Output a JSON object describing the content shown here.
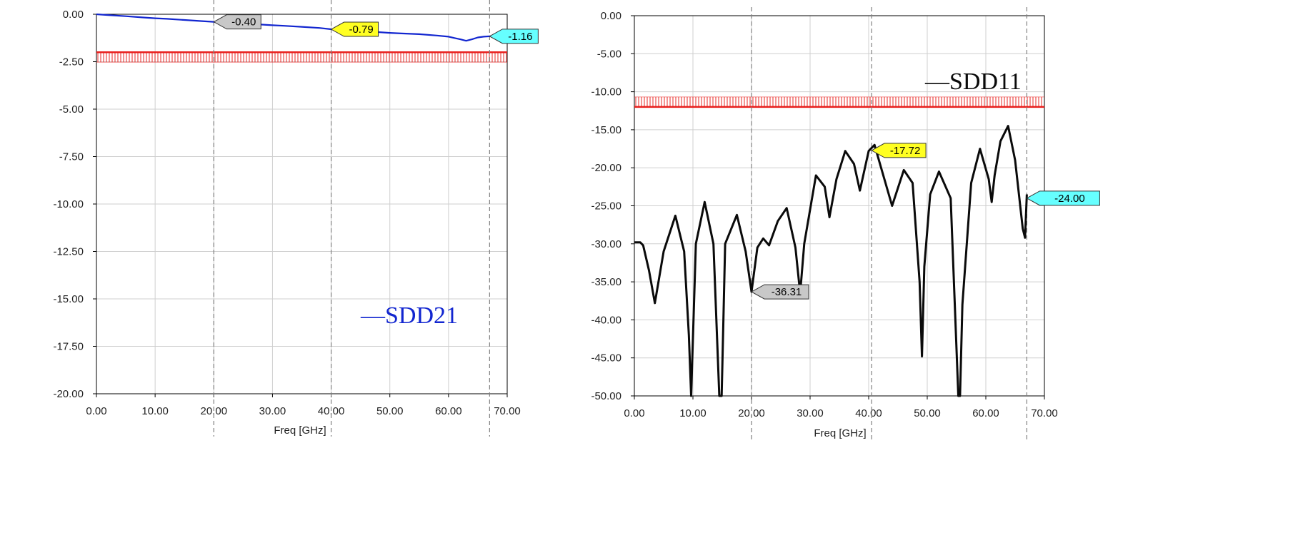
{
  "colors": {
    "grid": "#cfcfcf",
    "axis": "#000000",
    "limit": "#e8201e",
    "sdd21": "#1226d0",
    "sdd11": "#0a0a0a",
    "marker_gray": "#c8c8c8",
    "marker_yellow": "#ffff22",
    "marker_cyan": "#66ffff"
  },
  "chart_data": [
    {
      "type": "line",
      "title": "",
      "xlabel": "Freq [GHz]",
      "ylabel": "",
      "xlim": [
        0,
        70
      ],
      "ylim": [
        -20,
        0
      ],
      "grid": true,
      "x_ticks": [
        "0.00",
        "10.00",
        "20.00",
        "30.00",
        "40.00",
        "50.00",
        "60.00",
        "70.00"
      ],
      "y_ticks": [
        "0.00",
        "-2.50",
        "-5.00",
        "-7.50",
        "-10.00",
        "-12.50",
        "-15.00",
        "-17.50",
        "-20.00"
      ],
      "legend": "—SDD21",
      "limit_line": -2.0,
      "marker_lines_x": [
        20,
        40,
        67
      ],
      "markers": [
        {
          "x": 20,
          "y": -0.4,
          "label": "-0.40",
          "color": "gray"
        },
        {
          "x": 40,
          "y": -0.79,
          "label": "-0.79",
          "color": "yellow"
        },
        {
          "x": 67,
          "y": -1.16,
          "label": "-1.16",
          "color": "cyan"
        }
      ],
      "series": [
        {
          "x": [
            0,
            2,
            5,
            8,
            10,
            12,
            15,
            18,
            20,
            22,
            25,
            28,
            30,
            32,
            35,
            38,
            40,
            42,
            45,
            48,
            50,
            52,
            55,
            58,
            60,
            61,
            62,
            63,
            64,
            65,
            66,
            67,
            68,
            69,
            70
          ],
          "y": [
            0,
            -0.04,
            -0.1,
            -0.17,
            -0.21,
            -0.24,
            -0.3,
            -0.36,
            -0.4,
            -0.43,
            -0.48,
            -0.54,
            -0.58,
            -0.61,
            -0.66,
            -0.72,
            -0.79,
            -0.83,
            -0.88,
            -0.94,
            -0.98,
            -1.01,
            -1.05,
            -1.12,
            -1.18,
            -1.25,
            -1.32,
            -1.4,
            -1.32,
            -1.22,
            -1.18,
            -1.16,
            -1.14,
            -1.12,
            -1.1
          ]
        }
      ]
    },
    {
      "type": "line",
      "title": "",
      "xlabel": "Freq [GHz]",
      "ylabel": "",
      "xlim": [
        0,
        70
      ],
      "ylim": [
        -50,
        0
      ],
      "grid": true,
      "x_ticks": [
        "0.00",
        "10.00",
        "20.00",
        "30.00",
        "40.00",
        "50.00",
        "60.00",
        "70.00"
      ],
      "y_ticks": [
        "0.00",
        "-5.00",
        "-10.00",
        "-15.00",
        "-20.00",
        "-25.00",
        "-30.00",
        "-35.00",
        "-40.00",
        "-45.00",
        "-50.00"
      ],
      "legend": "—SDD11",
      "limit_line": -12.0,
      "marker_lines_x": [
        20,
        40.5,
        67
      ],
      "markers": [
        {
          "x": 20,
          "y": -36.31,
          "label": "-36.31",
          "color": "gray"
        },
        {
          "x": 40.5,
          "y": -17.72,
          "label": "-17.72",
          "color": "yellow"
        },
        {
          "x": 67,
          "y": -24.0,
          "label": "-24.00",
          "color": "cyan"
        }
      ],
      "series": [
        {
          "x": [
            0,
            1,
            1.5,
            2.5,
            3.5,
            5,
            7,
            8.5,
            9.3,
            9.7,
            10.5,
            12,
            13.5,
            14.5,
            14.9,
            15.5,
            17.5,
            19,
            20,
            21,
            22,
            23,
            24.5,
            26,
            27.5,
            28.3,
            29,
            31,
            32.5,
            33.3,
            34.5,
            36,
            37.5,
            38.5,
            40,
            41,
            42.5,
            44,
            46,
            47.5,
            48.7,
            49.1,
            49.5,
            50.5,
            52,
            54,
            55.3,
            55.6,
            56,
            57.5,
            59,
            60.5,
            61,
            61.5,
            62.5,
            63.8,
            65,
            66.3,
            66.7,
            67
          ],
          "y": [
            -29.8,
            -29.8,
            -30.2,
            -33.5,
            -37.8,
            -31,
            -26.3,
            -31,
            -42,
            -50,
            -30,
            -24.5,
            -30,
            -50,
            -50,
            -30,
            -26.2,
            -31,
            -36.3,
            -30.5,
            -29.3,
            -30.2,
            -27,
            -25.3,
            -30.5,
            -36.5,
            -30,
            -21,
            -22.5,
            -26.5,
            -21.5,
            -17.8,
            -19.5,
            -23,
            -17.8,
            -17,
            -21,
            -25,
            -20.3,
            -22,
            -35,
            -44.8,
            -33,
            -23.5,
            -20.5,
            -24,
            -50,
            -50,
            -38,
            -22,
            -17.5,
            -21.5,
            -24.5,
            -21,
            -16.5,
            -14.5,
            -19,
            -28,
            -29.2,
            -23.5
          ]
        }
      ]
    }
  ]
}
